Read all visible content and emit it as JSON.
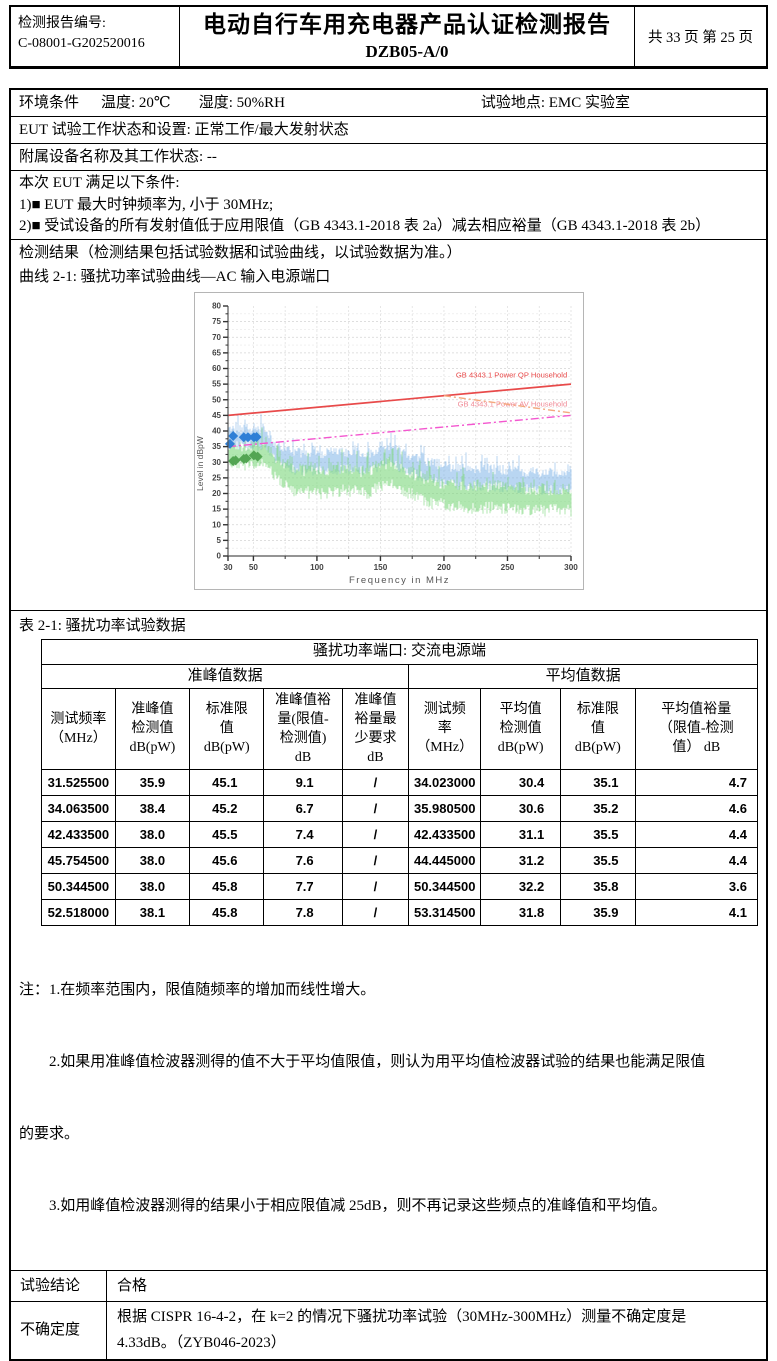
{
  "header": {
    "report_no_label": "检测报告编号:",
    "report_no": "C-08001-G202520016",
    "title": "电动自行车用充电器产品认证检测报告",
    "subtitle": "DZB05-A/0",
    "page_info": "共 33 页 第 25 页"
  },
  "env": {
    "label": "环境条件",
    "temperature": "温度: 20℃",
    "humidity": "湿度: 50%RH",
    "location": "试验地点: EMC 实验室"
  },
  "eut_state": "EUT 试验工作状态和设置: 正常工作/最大发射状态",
  "aux_equipment": "附属设备名称及其工作状态: --",
  "conditions": {
    "intro": "本次 EUT 满足以下条件:",
    "item1": "1)■ EUT 最大时钟频率为, 小于 30MHz;",
    "item2": "2)■ 受试设备的所有发射值低于应用限值（GB 4343.1-2018 表 2a）减去相应裕量（GB 4343.1-2018 表 2b）"
  },
  "results": {
    "heading": "检测结果（检测结果包括试验数据和试验曲线，以试验数据为准。）",
    "curve_caption": "曲线 2-1: 骚扰功率试验曲线—AC 输入电源端口"
  },
  "chart_data": {
    "type": "line",
    "xlabel": "Frequency in MHz",
    "ylabel": "Level in dBpW",
    "xlim": [
      30,
      300
    ],
    "ylim": [
      0,
      80
    ],
    "x_ticks": [
      30,
      50,
      100,
      150,
      200,
      250,
      300
    ],
    "x_minor_step": 25,
    "y_step": 5,
    "y_minor_step": 2.5,
    "grid": true,
    "limit_lines": [
      {
        "label": "GB 4343.1 Power QP Household",
        "color": "#e84a4a",
        "label_color": "#e84a4a",
        "dash": "",
        "x": [
          30,
          300
        ],
        "y": [
          45,
          55
        ],
        "show_label": true,
        "label_y": 57.2
      },
      {
        "label": "GB 4343.1 Power AV Household",
        "color": "#f356cf",
        "label_color": "#f08a96",
        "dash": "8,3,2,3",
        "x": [
          30,
          300
        ],
        "y": [
          35,
          45
        ],
        "show_label": true,
        "label_y": 47.8
      },
      {
        "label": "",
        "color": "#f4a87e",
        "label_color": "#f4a87e",
        "dash": "7,3,2,3",
        "x": [
          200,
          300
        ],
        "y": [
          51.3,
          45.8
        ],
        "show_label": false,
        "label_y": 0
      }
    ],
    "marker_series": [
      {
        "name": "quasi-peak readings",
        "color": "#2f7fd6",
        "points": [
          [
            31.5255,
            35.9
          ],
          [
            34.0635,
            38.4
          ],
          [
            42.4335,
            38.0
          ],
          [
            45.7545,
            38.0
          ],
          [
            50.3445,
            38.0
          ],
          [
            52.518,
            38.1
          ]
        ]
      },
      {
        "name": "average readings",
        "color": "#53a553",
        "points": [
          [
            34.023,
            30.4
          ],
          [
            35.9805,
            30.6
          ],
          [
            42.4335,
            31.1
          ],
          [
            44.445,
            31.2
          ],
          [
            50.3445,
            32.2
          ],
          [
            53.3145,
            31.8
          ]
        ]
      }
    ],
    "noise_bands": [
      {
        "name": "peak trace",
        "color": "#7fb5e8",
        "opacity": 0.55,
        "seed": 42,
        "envelope": [
          [
            30,
            38,
            4.5
          ],
          [
            60,
            38,
            4.5
          ],
          [
            68,
            33,
            4
          ],
          [
            80,
            30.5,
            4.5
          ],
          [
            100,
            30,
            4.5
          ],
          [
            120,
            30.5,
            4.5
          ],
          [
            140,
            30,
            4.5
          ],
          [
            158,
            32.5,
            4
          ],
          [
            170,
            30,
            4.5
          ],
          [
            190,
            27,
            4.5
          ],
          [
            210,
            25.5,
            4.5
          ],
          [
            240,
            25,
            4.5
          ],
          [
            270,
            24,
            4.5
          ],
          [
            300,
            24,
            4.5
          ]
        ]
      },
      {
        "name": "average trace",
        "color": "#7fd97f",
        "opacity": 0.62,
        "seed": 1337,
        "envelope": [
          [
            30,
            32,
            5
          ],
          [
            60,
            32.5,
            5
          ],
          [
            68,
            28,
            5
          ],
          [
            80,
            24.5,
            5.5
          ],
          [
            100,
            23.5,
            5.5
          ],
          [
            120,
            24.5,
            5.5
          ],
          [
            140,
            23.5,
            5.5
          ],
          [
            158,
            27,
            5
          ],
          [
            170,
            24,
            5.5
          ],
          [
            190,
            20.5,
            5.5
          ],
          [
            210,
            19,
            5.5
          ],
          [
            240,
            19,
            5.5
          ],
          [
            270,
            18,
            5.5
          ],
          [
            300,
            18,
            5.5
          ]
        ]
      }
    ]
  },
  "table": {
    "caption": "表 2-1: 骚扰功率试验数据",
    "port_header": "骚扰功率端口: 交流电源端",
    "qp_group": "准峰值数据",
    "avg_group": "平均值数据",
    "columns": [
      "测试频率\n（MHz）",
      "准峰值\n检测值\ndB(pW)",
      "标准限\n值\ndB(pW)",
      "准峰值裕\n量(限值-\n检测值)\ndB",
      "准峰值\n裕量最\n少要求\ndB",
      "测试频\n率\n（MHz）",
      "平均值\n检测值\ndB(pW)",
      "标准限\n值\ndB(pW)",
      "平均值裕量\n（限值-检测\n值） dB"
    ],
    "rows": [
      [
        "31.525500",
        "35.9",
        "45.1",
        "9.1",
        "/",
        "34.023000",
        "30.4",
        "35.1",
        "4.7"
      ],
      [
        "34.063500",
        "38.4",
        "45.2",
        "6.7",
        "/",
        "35.980500",
        "30.6",
        "35.2",
        "4.6"
      ],
      [
        "42.433500",
        "38.0",
        "45.5",
        "7.4",
        "/",
        "42.433500",
        "31.1",
        "35.5",
        "4.4"
      ],
      [
        "45.754500",
        "38.0",
        "45.6",
        "7.6",
        "/",
        "44.445000",
        "31.2",
        "35.5",
        "4.4"
      ],
      [
        "50.344500",
        "38.0",
        "45.8",
        "7.7",
        "/",
        "50.344500",
        "32.2",
        "35.8",
        "3.6"
      ],
      [
        "52.518000",
        "38.1",
        "45.8",
        "7.8",
        "/",
        "53.314500",
        "31.8",
        "35.9",
        "4.1"
      ]
    ]
  },
  "notes": {
    "line1": "注：1.在频率范围内，限值随频率的增加而线性增大。",
    "line2": "　　2.如果用准峰值检波器测得的值不大于平均值限值，则认为用平均值检波器试验的结果也能满足限值",
    "line3": "的要求。",
    "line4": "　　3.如用峰值检波器测得的结果小于相应限值减 25dB，则不再记录这些频点的准峰值和平均值。"
  },
  "conclusion": {
    "label": "试验结论",
    "value": "合格"
  },
  "uncertainty": {
    "label": "不确定度",
    "line1": "根据 CISPR 16-4-2，在 k=2 的情况下骚扰功率试验（30MHz-300MHz）测量不确定度是",
    "line2": "4.33dB。（ZYB046-2023）"
  }
}
